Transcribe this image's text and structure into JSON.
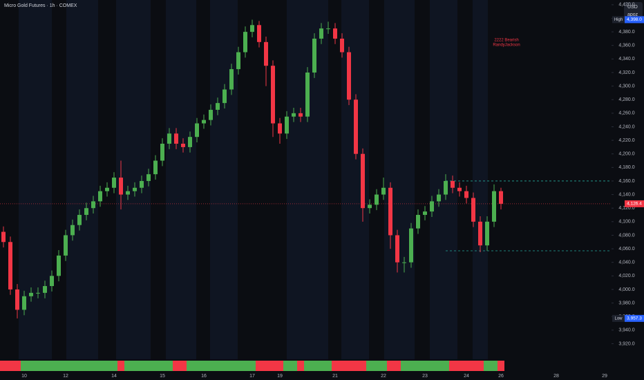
{
  "chart_data": {
    "type": "candlestick",
    "title": "Micro Gold Futures · 1h · COMEX",
    "currency": "USD",
    "scale_mode": "apoz",
    "annotation": [
      "2222 Bearish",
      "RandyJackson"
    ],
    "annotation_value": 4368,
    "categories": [
      null,
      null,
      null,
      "10",
      null,
      null,
      null,
      null,
      null,
      "12",
      null,
      null,
      null,
      null,
      null,
      null,
      "14",
      null,
      null,
      null,
      null,
      null,
      null,
      "15",
      null,
      null,
      null,
      null,
      null,
      "16",
      null,
      null,
      null,
      null,
      null,
      null,
      "17",
      null,
      null,
      null,
      "19",
      null,
      null,
      null,
      null,
      null,
      null,
      null,
      "21",
      null,
      null,
      null,
      null,
      null,
      null,
      "22",
      null,
      null,
      null,
      null,
      null,
      "23",
      null,
      null,
      null,
      null,
      null,
      "24",
      null,
      null,
      null,
      null,
      "26",
      null,
      null,
      null,
      null,
      null,
      null,
      null,
      "28",
      null,
      null,
      null,
      null,
      null,
      null,
      "29"
    ],
    "open": [
      4085,
      4070,
      4000,
      3970,
      3990,
      3995,
      3995,
      4005,
      4020,
      4050,
      4080,
      4095,
      4110,
      4120,
      4130,
      4145,
      4150,
      4165,
      4140,
      4145,
      4150,
      4160,
      4170,
      4190,
      4215,
      4230,
      4215,
      4210,
      4225,
      4245,
      4250,
      4265,
      4275,
      4295,
      4325,
      4350,
      4380,
      4390,
      4365,
      4330,
      4245,
      4230,
      4255,
      4260,
      4255,
      4320,
      4370,
      4385,
      4385,
      4370,
      4350,
      4280,
      4200,
      4120,
      4125,
      4140,
      4150,
      4080,
      4040,
      4040,
      4090,
      4110,
      4115,
      4130,
      4140,
      4160,
      4150,
      4145,
      4135,
      4100,
      4065,
      4100,
      4145,
      null,
      null,
      null,
      null,
      null,
      null,
      null,
      null,
      null,
      null,
      null,
      null,
      null,
      null,
      null
    ],
    "high": [
      4093,
      4078,
      4008,
      3998,
      4003,
      4003,
      4013,
      4028,
      4058,
      4088,
      4103,
      4118,
      4128,
      4138,
      4153,
      4158,
      4173,
      4190,
      4153,
      4158,
      4168,
      4178,
      4198,
      4223,
      4238,
      4238,
      4223,
      4233,
      4253,
      4258,
      4273,
      4283,
      4303,
      4333,
      4358,
      4388,
      4398,
      4396,
      4373,
      4338,
      4253,
      4263,
      4268,
      4268,
      4328,
      4378,
      4393,
      4395,
      4393,
      4378,
      4358,
      4288,
      4208,
      4133,
      4148,
      4165,
      4158,
      4088,
      4048,
      4098,
      4118,
      4123,
      4138,
      4148,
      4170,
      4168,
      4158,
      4153,
      4143,
      4108,
      4108,
      4155,
      4150,
      null,
      null,
      null,
      null,
      null,
      null,
      null,
      null,
      null,
      null,
      null,
      null,
      null,
      null,
      null
    ],
    "low": [
      4062,
      3992,
      3957.3,
      3962,
      3982,
      3987,
      3987,
      3997,
      4012,
      4042,
      4072,
      4087,
      4102,
      4112,
      4122,
      4137,
      4142,
      4118,
      4132,
      4137,
      4142,
      4152,
      4162,
      4182,
      4207,
      4207,
      4202,
      4202,
      4217,
      4237,
      4242,
      4257,
      4267,
      4287,
      4317,
      4342,
      4372,
      4357,
      4300,
      4225,
      4215,
      4222,
      4247,
      4247,
      4247,
      4312,
      4362,
      4377,
      4362,
      4342,
      4272,
      4192,
      4100,
      4112,
      4117,
      4132,
      4060,
      4025,
      4025,
      4032,
      4082,
      4102,
      4107,
      4122,
      4132,
      4142,
      4137,
      4127,
      4092,
      4055,
      4057,
      4092,
      4118,
      null,
      null,
      null,
      null,
      null,
      null,
      null,
      null,
      null,
      null,
      null,
      null,
      null,
      null,
      null
    ],
    "close": [
      4070,
      4000,
      3970,
      3990,
      3995,
      3995,
      4005,
      4020,
      4050,
      4080,
      4095,
      4110,
      4120,
      4130,
      4145,
      4150,
      4165,
      4140,
      4145,
      4150,
      4160,
      4170,
      4190,
      4215,
      4230,
      4215,
      4210,
      4225,
      4245,
      4250,
      4265,
      4275,
      4295,
      4325,
      4350,
      4380,
      4390,
      4365,
      4330,
      4245,
      4230,
      4255,
      4260,
      4255,
      4320,
      4370,
      4385,
      4385,
      4370,
      4350,
      4280,
      4200,
      4120,
      4125,
      4140,
      4150,
      4080,
      4040,
      4040,
      4090,
      4110,
      4115,
      4130,
      4140,
      4160,
      4150,
      4145,
      4135,
      4100,
      4065,
      4100,
      4145,
      4126.4,
      null,
      null,
      null,
      null,
      null,
      null,
      null,
      null,
      null,
      null,
      null,
      null,
      null,
      null,
      null
    ],
    "up_color": "#4caf50",
    "down_color": "#f23645",
    "markers": [
      {
        "label": "High",
        "value": 4398,
        "value_label": "4,398.0",
        "color": "#2962ff"
      },
      {
        "label": "Low",
        "value": 3957.3,
        "value_label": "3,957.3",
        "color": "#2962ff"
      },
      {
        "value": 4126.4,
        "value_label": "4,126.4",
        "color": "#f23645"
      }
    ],
    "levels": [
      4160,
      4057
    ],
    "grid": false,
    "ylim": [
      3897,
      4427
    ],
    "yticks": [
      {
        "value": 3920,
        "label": "3,920.0"
      },
      {
        "value": 3940,
        "label": "3,940.0"
      },
      {
        "value": 3960,
        "label": "3,960.0"
      },
      {
        "value": 3980,
        "label": "3,980.0"
      },
      {
        "value": 4000,
        "label": "4,000.0"
      },
      {
        "value": 4020,
        "label": "4,020.0"
      },
      {
        "value": 4040,
        "label": "4,040.0"
      },
      {
        "value": 4060,
        "label": "4,060.0"
      },
      {
        "value": 4080,
        "label": "4,080.0"
      },
      {
        "value": 4100,
        "label": "4,100.0"
      },
      {
        "value": 4120,
        "label": "4,120.0"
      },
      {
        "value": 4140,
        "label": "4,140.0"
      },
      {
        "value": 4160,
        "label": "4,160.0"
      },
      {
        "value": 4180,
        "label": "4,180.0"
      },
      {
        "value": 4200,
        "label": "4,200.0"
      },
      {
        "value": 4220,
        "label": "4,220.0"
      },
      {
        "value": 4240,
        "label": "4,240.0"
      },
      {
        "value": 4260,
        "label": "4,260.0"
      },
      {
        "value": 4280,
        "label": "4,280.0"
      },
      {
        "value": 4300,
        "label": "4,300.0"
      },
      {
        "value": 4320,
        "label": "4,320.0"
      },
      {
        "value": 4340,
        "label": "4,340.0"
      },
      {
        "value": 4360,
        "label": "4,360.0"
      },
      {
        "value": 4380,
        "label": "4,380.0"
      },
      {
        "value": 4400,
        "label": "4,400.0"
      },
      {
        "value": 4420,
        "label": "4,420.0"
      }
    ]
  }
}
